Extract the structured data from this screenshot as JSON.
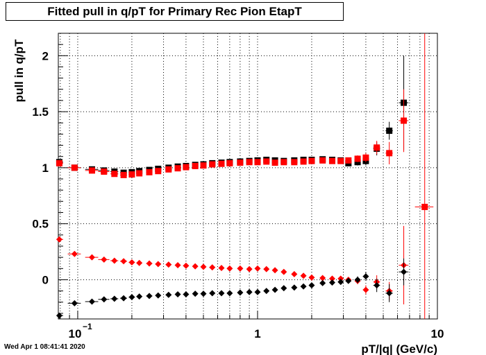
{
  "title": "Fitted pull in q/pT for Primary Rec Pion EtapT",
  "timestamp": "Wed Apr  1 08:41:41 2020",
  "chart_data": {
    "type": "scatter",
    "title": "Fitted pull in q/pT for Primary Rec Pion EtapT",
    "xlabel": "pT/|q| (GeV/c)",
    "ylabel": "pull in q/pT",
    "x_scale": "log",
    "xlim": [
      0.078,
      10
    ],
    "ylim": [
      -0.35,
      2.2
    ],
    "x_tick_labels": [
      {
        "value": 0.1,
        "label": "10",
        "exponent": "−1"
      },
      {
        "value": 1,
        "label": "1"
      },
      {
        "value": 10,
        "label": "10"
      }
    ],
    "y_tick_labels": [
      "0",
      "0.5",
      "1",
      "1.5",
      "2"
    ],
    "y_ticks": [
      0,
      0.5,
      1,
      1.5,
      2
    ],
    "grid": true,
    "series": [
      {
        "marker": "square",
        "color": "#000000",
        "points": [
          [
            0.079,
            1.05,
            0.004,
            0.02
          ],
          [
            0.096,
            1.0,
            0.008,
            0.015
          ],
          [
            0.12,
            0.985,
            0.01,
            0.01
          ],
          [
            0.14,
            0.975,
            0.01,
            0.01
          ],
          [
            0.16,
            0.965,
            0.008,
            0.01
          ],
          [
            0.18,
            0.955,
            0.008,
            0.008
          ],
          [
            0.2,
            0.96,
            0.008,
            0.008
          ],
          [
            0.22,
            0.97,
            0.008,
            0.008
          ],
          [
            0.25,
            0.98,
            0.01,
            0.006
          ],
          [
            0.28,
            0.99,
            0.01,
            0.006
          ],
          [
            0.32,
            1.0,
            0.012,
            0.006
          ],
          [
            0.36,
            1.01,
            0.012,
            0.006
          ],
          [
            0.4,
            1.015,
            0.015,
            0.006
          ],
          [
            0.45,
            1.025,
            0.015,
            0.006
          ],
          [
            0.5,
            1.03,
            0.015,
            0.006
          ],
          [
            0.56,
            1.04,
            0.02,
            0.006
          ],
          [
            0.63,
            1.045,
            0.02,
            0.006
          ],
          [
            0.7,
            1.05,
            0.02,
            0.006
          ],
          [
            0.8,
            1.055,
            0.025,
            0.006
          ],
          [
            0.9,
            1.06,
            0.025,
            0.006
          ],
          [
            1.0,
            1.065,
            0.03,
            0.006
          ],
          [
            1.12,
            1.07,
            0.03,
            0.006
          ],
          [
            1.25,
            1.065,
            0.03,
            0.006
          ],
          [
            1.4,
            1.06,
            0.04,
            0.006
          ],
          [
            1.6,
            1.065,
            0.04,
            0.006
          ],
          [
            1.8,
            1.07,
            0.05,
            0.008
          ],
          [
            2.0,
            1.07,
            0.05,
            0.008
          ],
          [
            2.3,
            1.075,
            0.06,
            0.01
          ],
          [
            2.6,
            1.07,
            0.07,
            0.012
          ],
          [
            2.9,
            1.065,
            0.08,
            0.015
          ],
          [
            3.2,
            1.04,
            0.1,
            0.02
          ],
          [
            3.6,
            1.05,
            0.12,
            0.03
          ],
          [
            4.0,
            1.06,
            0.15,
            0.04
          ],
          [
            4.6,
            1.17,
            0.2,
            0.06
          ],
          [
            5.4,
            1.33,
            0.25,
            0.08
          ],
          [
            6.5,
            1.58,
            0.4,
            0.42
          ]
        ]
      },
      {
        "marker": "square",
        "color": "#ff0000",
        "points": [
          [
            0.079,
            1.04,
            0.004,
            0.02
          ],
          [
            0.096,
            1.0,
            0.008,
            0.015
          ],
          [
            0.12,
            0.975,
            0.01,
            0.01
          ],
          [
            0.14,
            0.965,
            0.01,
            0.01
          ],
          [
            0.16,
            0.945,
            0.008,
            0.01
          ],
          [
            0.18,
            0.935,
            0.008,
            0.01
          ],
          [
            0.2,
            0.94,
            0.008,
            0.008
          ],
          [
            0.22,
            0.95,
            0.008,
            0.008
          ],
          [
            0.25,
            0.96,
            0.01,
            0.006
          ],
          [
            0.28,
            0.97,
            0.01,
            0.006
          ],
          [
            0.32,
            0.985,
            0.012,
            0.006
          ],
          [
            0.36,
            0.995,
            0.012,
            0.006
          ],
          [
            0.4,
            1.005,
            0.015,
            0.006
          ],
          [
            0.45,
            1.015,
            0.015,
            0.006
          ],
          [
            0.5,
            1.02,
            0.015,
            0.006
          ],
          [
            0.56,
            1.03,
            0.02,
            0.006
          ],
          [
            0.63,
            1.035,
            0.02,
            0.006
          ],
          [
            0.7,
            1.04,
            0.02,
            0.006
          ],
          [
            0.8,
            1.045,
            0.025,
            0.006
          ],
          [
            0.9,
            1.05,
            0.025,
            0.006
          ],
          [
            1.0,
            1.05,
            0.03,
            0.006
          ],
          [
            1.12,
            1.055,
            0.03,
            0.006
          ],
          [
            1.25,
            1.045,
            0.03,
            0.006
          ],
          [
            1.4,
            1.05,
            0.04,
            0.006
          ],
          [
            1.6,
            1.05,
            0.04,
            0.006
          ],
          [
            1.8,
            1.055,
            0.05,
            0.008
          ],
          [
            2.0,
            1.06,
            0.05,
            0.008
          ],
          [
            2.3,
            1.065,
            0.06,
            0.01
          ],
          [
            2.6,
            1.06,
            0.07,
            0.012
          ],
          [
            2.9,
            1.06,
            0.08,
            0.015
          ],
          [
            3.2,
            1.065,
            0.1,
            0.02
          ],
          [
            3.6,
            1.08,
            0.12,
            0.03
          ],
          [
            4.0,
            1.09,
            0.15,
            0.04
          ],
          [
            4.6,
            1.18,
            0.2,
            0.06
          ],
          [
            5.4,
            1.13,
            0.25,
            0.1
          ],
          [
            6.5,
            1.42,
            0.4,
            0.28
          ],
          [
            8.5,
            0.65,
            1.0,
            1.6
          ]
        ]
      },
      {
        "marker": "diamond",
        "color": "#ff0000",
        "points": [
          [
            0.079,
            0.36,
            0.004,
            0.01
          ],
          [
            0.096,
            0.23,
            0.008,
            0.01
          ],
          [
            0.12,
            0.2,
            0.01,
            0.008
          ],
          [
            0.14,
            0.18,
            0.01,
            0.008
          ],
          [
            0.16,
            0.17,
            0.008,
            0.008
          ],
          [
            0.18,
            0.165,
            0.008,
            0.006
          ],
          [
            0.2,
            0.155,
            0.008,
            0.006
          ],
          [
            0.22,
            0.15,
            0.008,
            0.006
          ],
          [
            0.25,
            0.145,
            0.01,
            0.006
          ],
          [
            0.28,
            0.14,
            0.01,
            0.006
          ],
          [
            0.32,
            0.135,
            0.012,
            0.006
          ],
          [
            0.36,
            0.13,
            0.012,
            0.006
          ],
          [
            0.4,
            0.125,
            0.015,
            0.006
          ],
          [
            0.45,
            0.12,
            0.015,
            0.006
          ],
          [
            0.5,
            0.115,
            0.015,
            0.006
          ],
          [
            0.56,
            0.11,
            0.02,
            0.006
          ],
          [
            0.63,
            0.105,
            0.02,
            0.006
          ],
          [
            0.7,
            0.1,
            0.02,
            0.006
          ],
          [
            0.8,
            0.1,
            0.025,
            0.006
          ],
          [
            0.9,
            0.095,
            0.025,
            0.006
          ],
          [
            1.0,
            0.1,
            0.03,
            0.006
          ],
          [
            1.12,
            0.095,
            0.03,
            0.006
          ],
          [
            1.25,
            0.085,
            0.03,
            0.006
          ],
          [
            1.4,
            0.07,
            0.04,
            0.006
          ],
          [
            1.6,
            0.05,
            0.04,
            0.008
          ],
          [
            1.8,
            0.035,
            0.05,
            0.008
          ],
          [
            2.0,
            0.02,
            0.05,
            0.008
          ],
          [
            2.3,
            0.015,
            0.06,
            0.01
          ],
          [
            2.6,
            0.01,
            0.07,
            0.012
          ],
          [
            2.9,
            0.01,
            0.08,
            0.015
          ],
          [
            3.2,
            0.0,
            0.1,
            0.02
          ],
          [
            3.6,
            -0.01,
            0.12,
            0.03
          ],
          [
            4.0,
            -0.09,
            0.15,
            0.04
          ],
          [
            4.6,
            -0.02,
            0.2,
            0.06
          ],
          [
            5.4,
            -0.1,
            0.25,
            0.08
          ],
          [
            6.5,
            0.13,
            0.4,
            0.35
          ]
        ]
      },
      {
        "marker": "diamond",
        "color": "#000000",
        "points": [
          [
            0.079,
            -0.32,
            0.004,
            0.01
          ],
          [
            0.096,
            -0.21,
            0.008,
            0.01
          ],
          [
            0.12,
            -0.195,
            0.01,
            0.008
          ],
          [
            0.14,
            -0.175,
            0.01,
            0.008
          ],
          [
            0.16,
            -0.17,
            0.008,
            0.008
          ],
          [
            0.18,
            -0.165,
            0.008,
            0.006
          ],
          [
            0.2,
            -0.155,
            0.008,
            0.006
          ],
          [
            0.22,
            -0.15,
            0.008,
            0.006
          ],
          [
            0.25,
            -0.145,
            0.01,
            0.006
          ],
          [
            0.28,
            -0.14,
            0.01,
            0.006
          ],
          [
            0.32,
            -0.135,
            0.012,
            0.006
          ],
          [
            0.36,
            -0.13,
            0.012,
            0.006
          ],
          [
            0.4,
            -0.13,
            0.015,
            0.006
          ],
          [
            0.45,
            -0.125,
            0.015,
            0.006
          ],
          [
            0.5,
            -0.125,
            0.015,
            0.006
          ],
          [
            0.56,
            -0.12,
            0.02,
            0.006
          ],
          [
            0.63,
            -0.12,
            0.02,
            0.006
          ],
          [
            0.7,
            -0.12,
            0.02,
            0.006
          ],
          [
            0.8,
            -0.115,
            0.025,
            0.006
          ],
          [
            0.9,
            -0.11,
            0.025,
            0.006
          ],
          [
            1.0,
            -0.11,
            0.03,
            0.006
          ],
          [
            1.12,
            -0.1,
            0.03,
            0.006
          ],
          [
            1.25,
            -0.09,
            0.03,
            0.006
          ],
          [
            1.4,
            -0.075,
            0.04,
            0.006
          ],
          [
            1.6,
            -0.07,
            0.04,
            0.008
          ],
          [
            1.8,
            -0.06,
            0.05,
            0.008
          ],
          [
            2.0,
            -0.05,
            0.05,
            0.008
          ],
          [
            2.3,
            -0.03,
            0.06,
            0.01
          ],
          [
            2.6,
            -0.025,
            0.07,
            0.012
          ],
          [
            2.9,
            -0.02,
            0.08,
            0.015
          ],
          [
            3.2,
            -0.01,
            0.1,
            0.02
          ],
          [
            3.6,
            0.0,
            0.12,
            0.03
          ],
          [
            4.0,
            0.03,
            0.15,
            0.04
          ],
          [
            4.6,
            -0.05,
            0.2,
            0.06
          ],
          [
            5.4,
            -0.12,
            0.25,
            0.08
          ],
          [
            6.5,
            0.07,
            0.4,
            0.12
          ]
        ]
      }
    ]
  }
}
